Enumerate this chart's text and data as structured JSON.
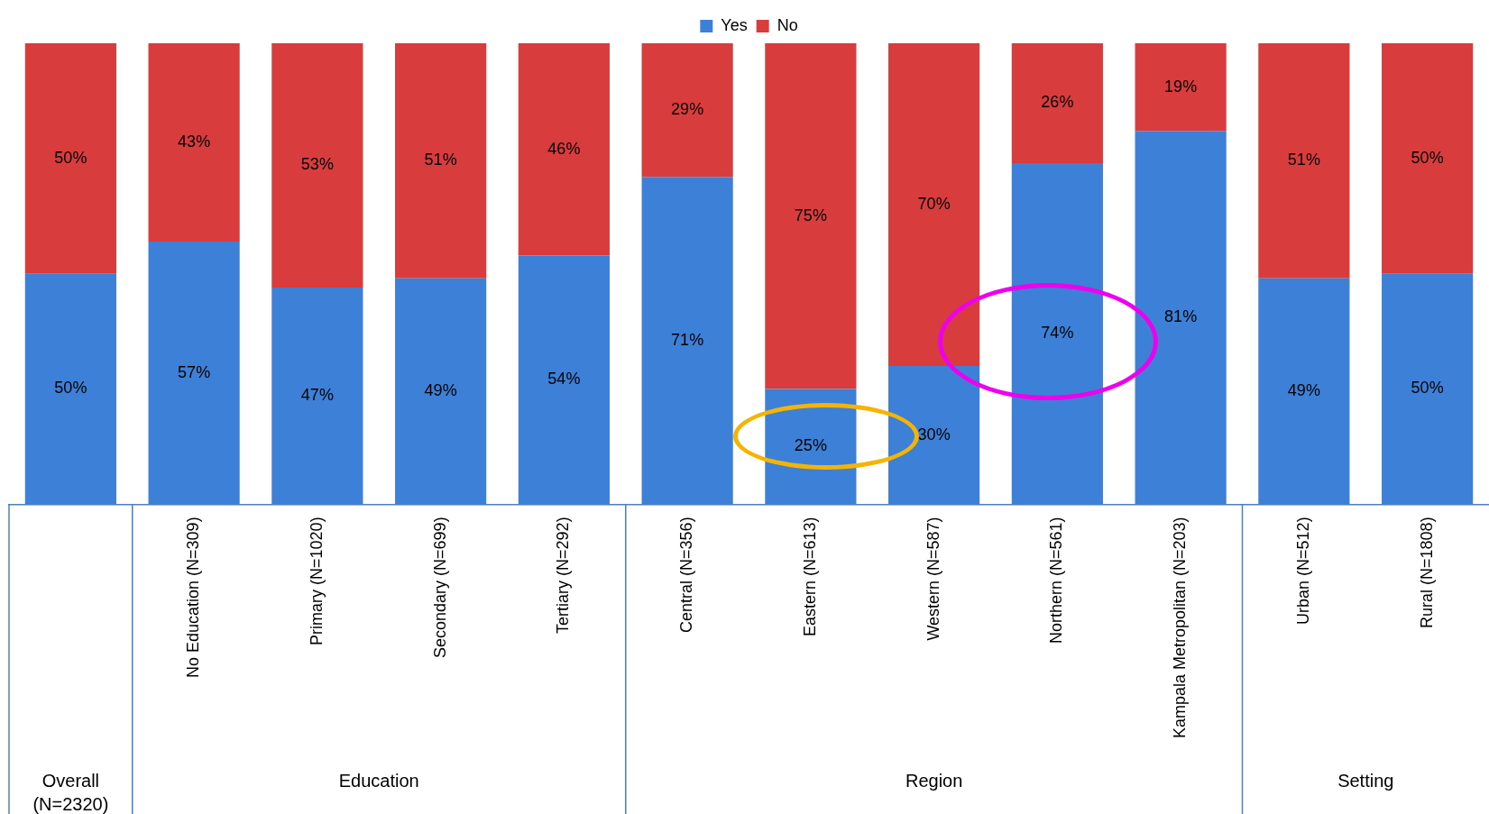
{
  "chart_data": {
    "type": "bar",
    "stacked": true,
    "legend": "top",
    "tick_labels": "x",
    "ylim": [
      0,
      100
    ],
    "categories": [
      null,
      "No Education (N=309)",
      "Primary (N=1020)",
      "Secondary (N=699)",
      "Tertiary (N=292)",
      "Central (N=356)",
      "Eastern (N=613)",
      "Western (N=587)",
      "Northern (N=561)",
      "Kampala Metropolitan (N=203)",
      "Urban (N=512)",
      "Rural (N=1808)"
    ],
    "series": [
      {
        "name": "Yes",
        "color": "#3c80d8",
        "values": [
          50,
          57,
          47,
          49,
          54,
          71,
          25,
          30,
          74,
          81,
          49,
          50
        ],
        "value_labels": [
          "50%",
          "57%",
          "47%",
          "49%",
          "54%",
          "71%",
          "25%",
          "30%",
          "74%",
          "81%",
          "49%",
          "50%"
        ]
      },
      {
        "name": "No",
        "color": "#d93c3c",
        "values": [
          50,
          43,
          53,
          51,
          46,
          29,
          75,
          70,
          26,
          19,
          51,
          50
        ],
        "value_labels": [
          "50%",
          "43%",
          "53%",
          "51%",
          "46%",
          "29%",
          "75%",
          "70%",
          "26%",
          "19%",
          "51%",
          "50%"
        ]
      }
    ],
    "annotations": [
      "Overall (N=2320)",
      "Education",
      "Region",
      "Setting"
    ]
  }
}
